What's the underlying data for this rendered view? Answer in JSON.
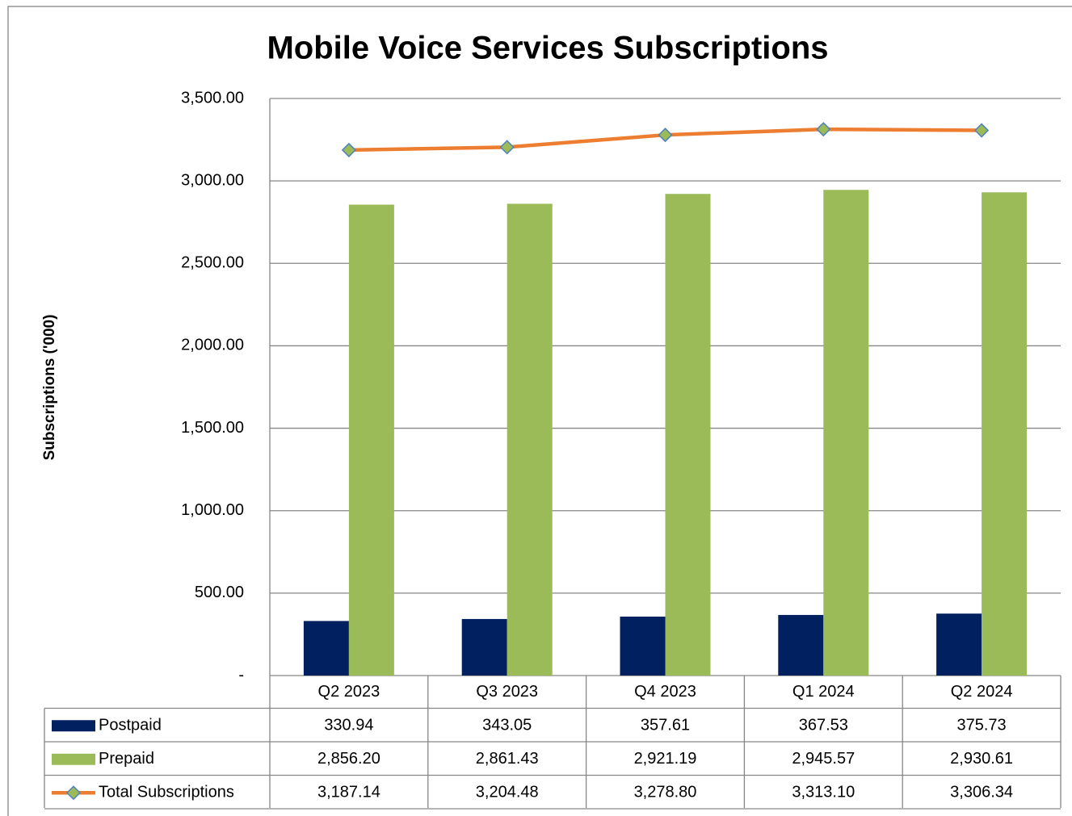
{
  "chart_data": {
    "type": "bar",
    "title": "Mobile Voice Services Subscriptions",
    "y_label": "Subscriptions ('000)",
    "categories": [
      "Q2 2023",
      "Q3 2023",
      "Q4 2023",
      "Q1 2024",
      "Q2 2024"
    ],
    "series": [
      {
        "name": "Postpaid",
        "type": "bar",
        "color": "#002060",
        "values": [
          330.94,
          343.05,
          357.61,
          367.53,
          375.73
        ]
      },
      {
        "name": "Prepaid",
        "type": "bar",
        "color": "#9bbb59",
        "values": [
          2856.2,
          2861.43,
          2921.19,
          2945.57,
          2930.61
        ],
        "value_labels": [
          "2,856.20",
          "2,861.43",
          "2,921.19",
          "2,945.57",
          "2,930.61"
        ]
      },
      {
        "name": "Total Subscriptions",
        "type": "line",
        "color": "#ed7d31",
        "marker_color": "#9bbb59",
        "values": [
          3187.14,
          3204.48,
          3278.8,
          3313.1,
          3306.34
        ],
        "value_labels": [
          "3,187.14",
          "3,204.48",
          "3,278.80",
          "3,313.10",
          "3,306.34"
        ]
      }
    ],
    "ylim": [
      0,
      3500
    ],
    "yticks": [
      {
        "value": 0,
        "label": "-"
      },
      {
        "value": 500,
        "label": "500.00"
      },
      {
        "value": 1000,
        "label": "1,000.00"
      },
      {
        "value": 1500,
        "label": "1,500.00"
      },
      {
        "value": 2000,
        "label": "2,000.00"
      },
      {
        "value": 2500,
        "label": "2,500.00"
      },
      {
        "value": 3000,
        "label": "3,000.00"
      },
      {
        "value": 3500,
        "label": "3,500.00"
      }
    ],
    "grid": true
  }
}
